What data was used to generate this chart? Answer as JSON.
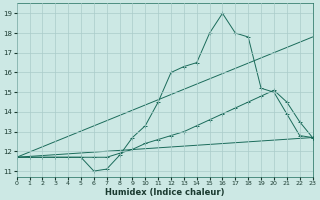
{
  "xlabel": "Humidex (Indice chaleur)",
  "bg_color": "#cce8e4",
  "grid_color": "#aaccca",
  "line_color": "#1a6b5a",
  "xlim": [
    0,
    23
  ],
  "ylim": [
    10.7,
    19.5
  ],
  "xticks": [
    0,
    1,
    2,
    3,
    4,
    5,
    6,
    7,
    8,
    9,
    10,
    11,
    12,
    13,
    14,
    15,
    16,
    17,
    18,
    19,
    20,
    21,
    22,
    23
  ],
  "yticks": [
    11,
    12,
    13,
    14,
    15,
    16,
    17,
    18,
    19
  ],
  "line1_x": [
    0,
    1,
    2,
    3,
    4,
    5,
    6,
    7,
    8,
    9,
    10,
    11,
    12,
    13,
    14,
    15,
    16,
    17,
    18,
    19,
    20,
    21,
    22,
    23
  ],
  "line1_y": [
    11.7,
    11.7,
    11.7,
    11.7,
    11.7,
    11.7,
    11.0,
    11.1,
    11.8,
    12.7,
    13.3,
    14.5,
    16.0,
    16.3,
    16.5,
    18.0,
    19.0,
    18.0,
    17.8,
    15.2,
    15.0,
    13.9,
    12.8,
    12.7
  ],
  "line2_x": [
    0,
    1,
    2,
    3,
    4,
    5,
    6,
    7,
    8,
    9,
    10,
    11,
    12,
    13,
    14,
    15,
    16,
    17,
    18,
    19,
    20,
    21,
    22,
    23
  ],
  "line2_y": [
    11.7,
    11.7,
    11.7,
    11.7,
    11.7,
    11.7,
    11.7,
    11.7,
    11.9,
    12.1,
    12.4,
    12.6,
    12.8,
    13.0,
    13.3,
    13.6,
    13.9,
    14.2,
    14.5,
    14.8,
    15.1,
    14.5,
    13.5,
    12.7
  ],
  "line3_x": [
    0,
    23
  ],
  "line3_y": [
    11.7,
    17.8
  ],
  "line4_x": [
    0,
    23
  ],
  "line4_y": [
    11.7,
    12.7
  ]
}
